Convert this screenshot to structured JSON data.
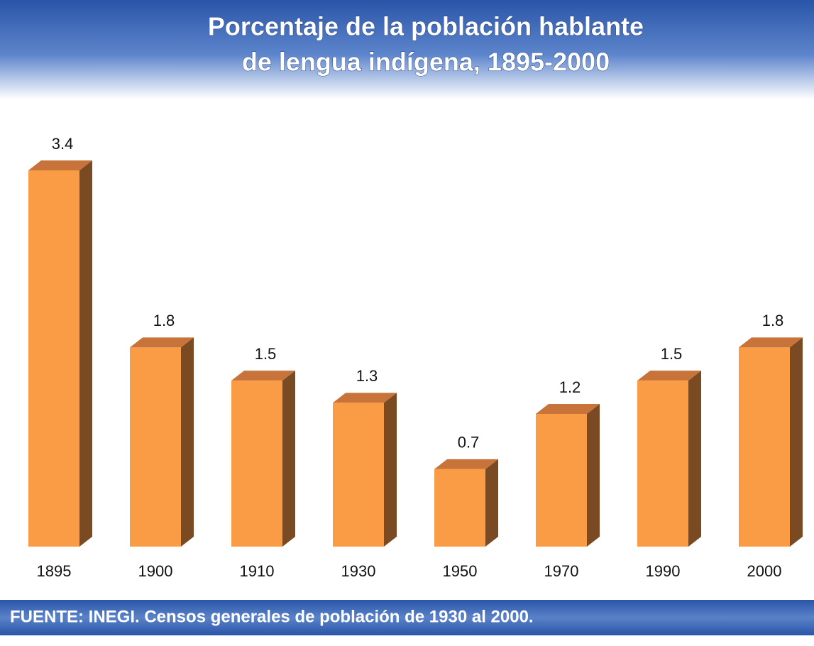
{
  "chart_data": {
    "type": "bar3d",
    "title": [
      "Porcentaje de la población hablante",
      "de lengua indígena, 1895-2000"
    ],
    "categories": [
      "1895",
      "1900",
      "1910",
      "1930",
      "1950",
      "1970",
      "1990",
      "2000"
    ],
    "values": [
      3.4,
      1.8,
      1.5,
      1.3,
      0.7,
      1.2,
      1.5,
      1.8
    ],
    "color": "#f99c45",
    "source": "FUENTE: INEGI. Censos generales de población de 1930 al 2000."
  }
}
